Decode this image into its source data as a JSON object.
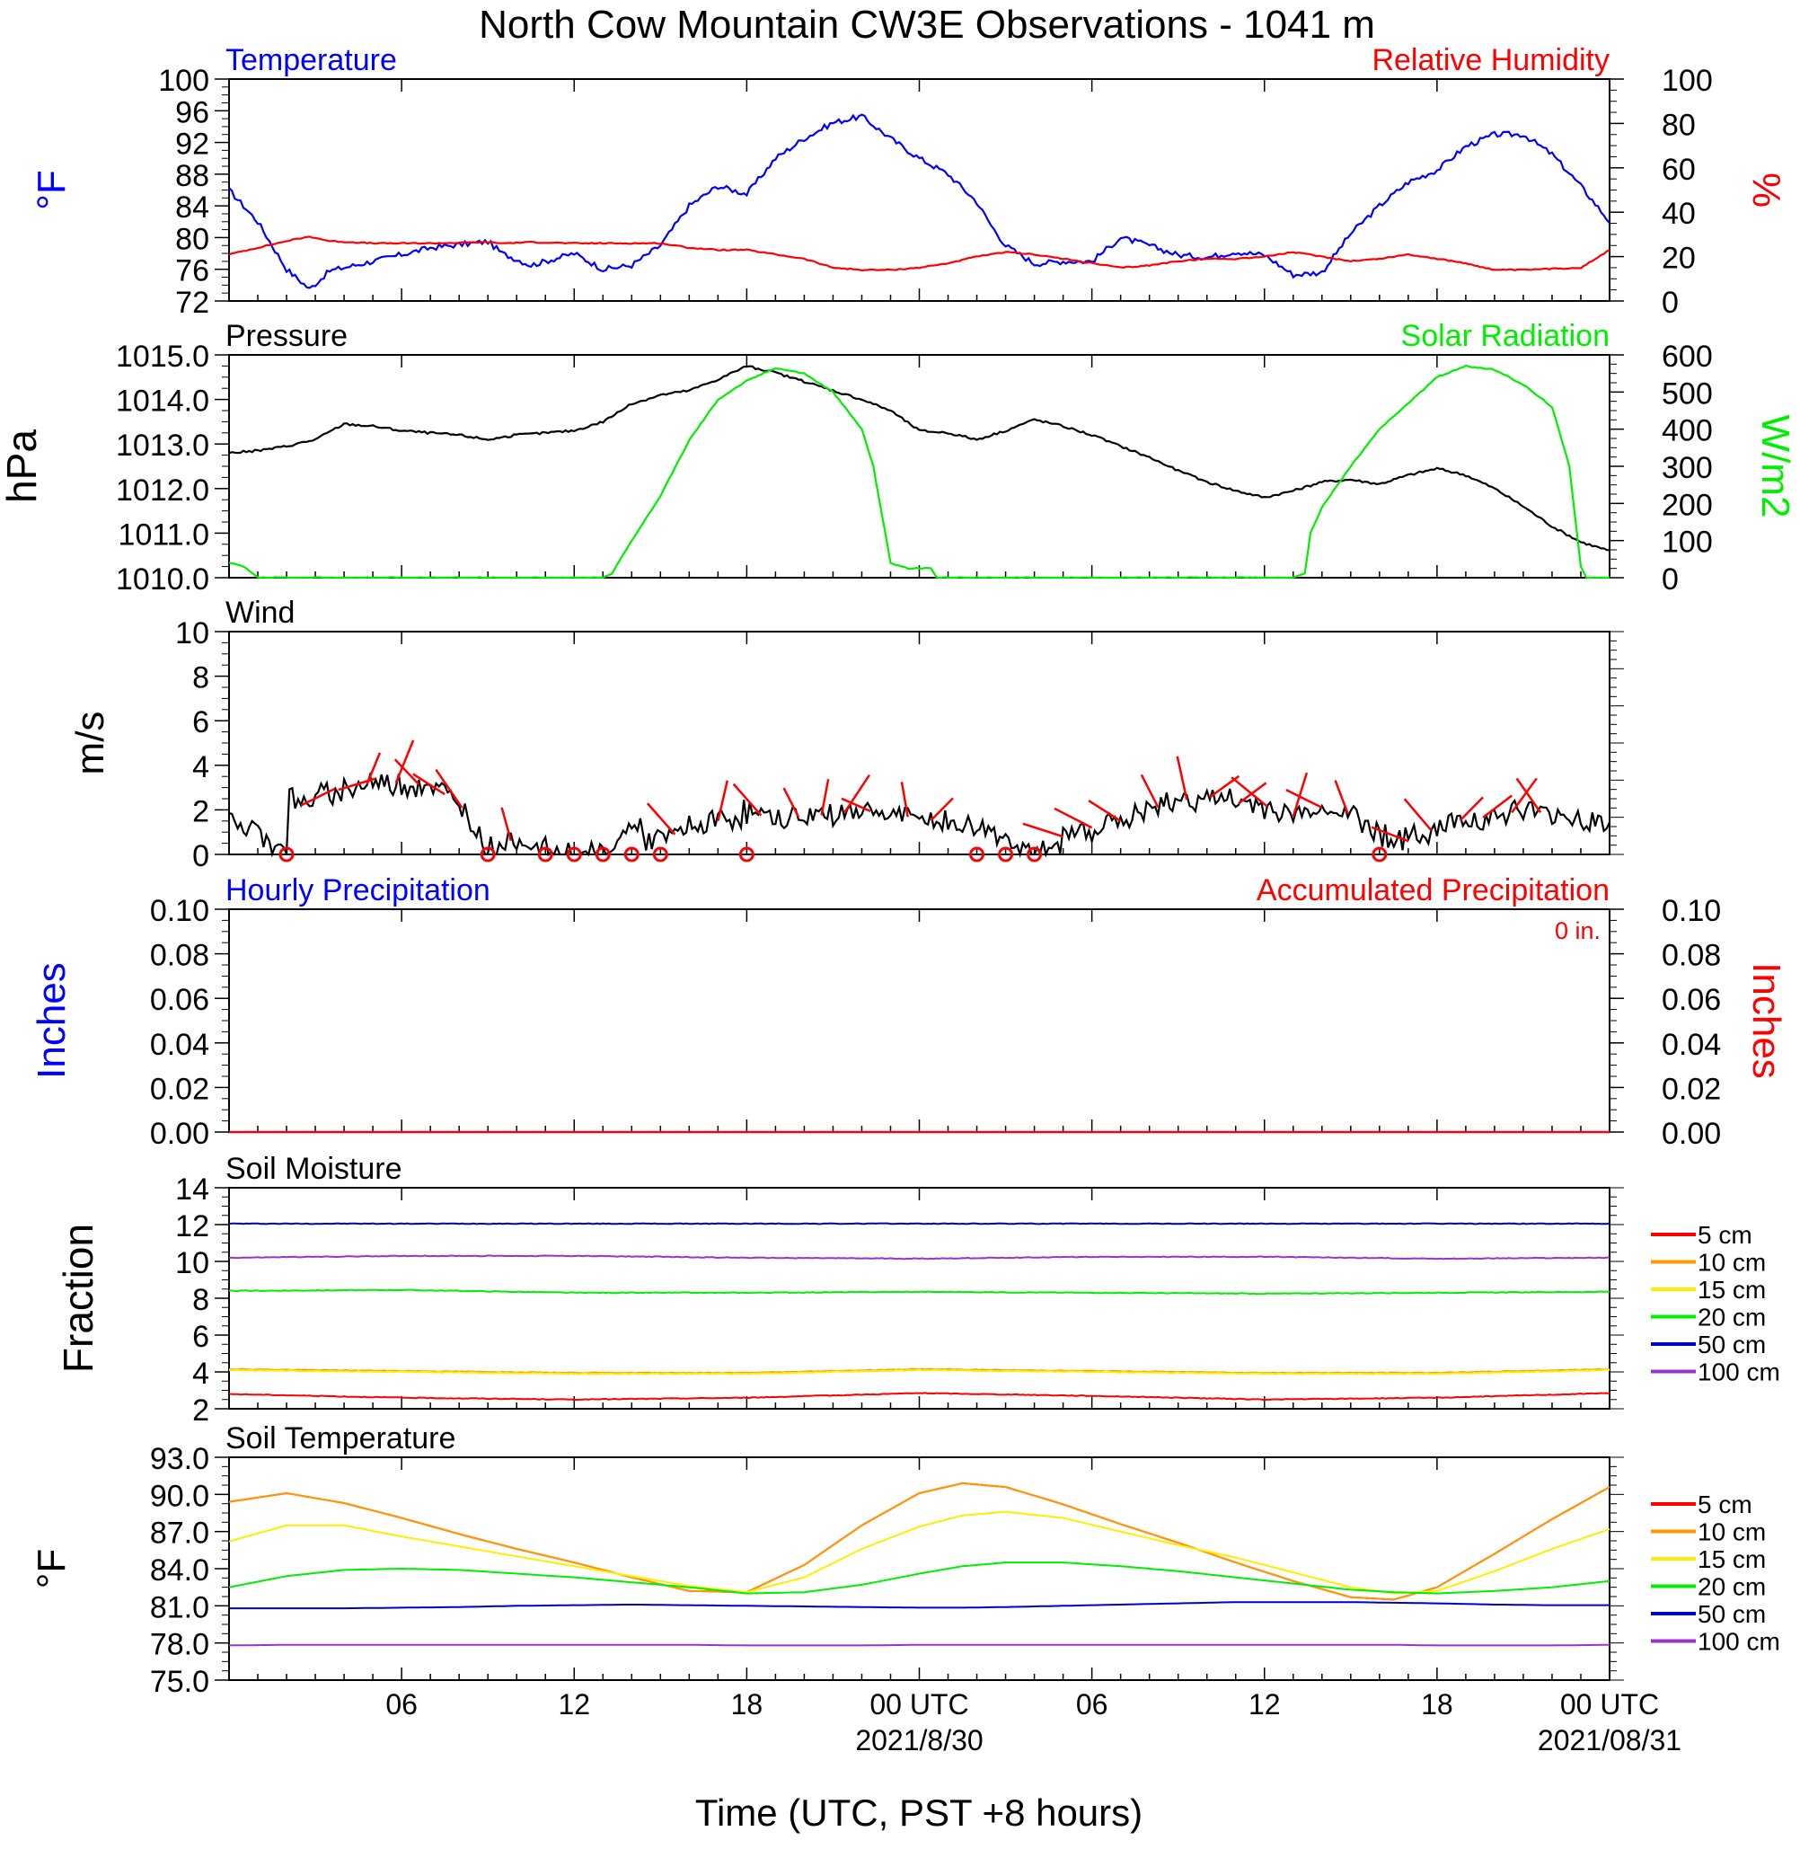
{
  "page": {
    "title": "North Cow Mountain CW3E Observations - 1041 m",
    "xaxis": {
      "label": "Time (UTC, PST +8 hours)",
      "ticks": [
        "06",
        "12",
        "18",
        "00 UTC",
        "06",
        "12",
        "18",
        "00 UTC"
      ],
      "dates": [
        "2021/8/30",
        "2021/08/31"
      ]
    }
  },
  "chart_data": [
    {
      "id": "temp_rh",
      "type": "line",
      "title_left": "Temperature",
      "title_right": "Relative Humidity",
      "ylabel_left": "°F",
      "ylabel_right": "%",
      "ylim_left": [
        72,
        100
      ],
      "ylim_right": [
        0,
        100
      ],
      "yticks_left": [
        "100",
        "96",
        "92",
        "88",
        "84",
        "80",
        "76",
        "72"
      ],
      "yticks_right": [
        "100",
        "80",
        "60",
        "40",
        "20",
        "0"
      ],
      "x_hours": [
        0,
        1,
        2,
        2.8,
        3.5,
        5,
        7,
        9,
        9.5,
        10.5,
        12,
        13,
        14,
        15,
        16,
        17,
        18,
        19,
        20,
        21,
        22,
        23,
        24,
        25,
        26,
        26.5,
        27,
        28,
        29,
        30,
        31,
        32,
        33,
        34,
        35,
        36,
        37,
        38,
        39,
        40,
        41,
        42,
        43,
        44,
        45,
        46,
        47,
        48
      ],
      "series": [
        {
          "name": "Temperature",
          "axis": "left",
          "color": "#0000ff",
          "values": [
            86,
            82,
            76,
            73.5,
            75.8,
            77,
            78.7,
            79.5,
            78,
            76.5,
            78,
            76,
            76.5,
            79,
            84,
            86.5,
            85.5,
            90,
            92.5,
            94.5,
            95.3,
            92.5,
            90,
            88,
            84.5,
            81.5,
            79,
            76.7,
            77,
            77,
            80,
            79,
            77.8,
            77.5,
            78.2,
            77.8,
            75.3,
            75.6,
            80.5,
            84,
            87,
            88.5,
            91.5,
            93,
            93,
            90.5,
            86.5,
            82
          ]
        },
        {
          "name": "Relative Humidity",
          "axis": "right",
          "color": "#ff0000",
          "values": [
            21,
            24,
            27,
            29,
            27,
            26,
            26,
            26.5,
            26,
            26.5,
            26,
            26,
            26,
            26,
            24,
            23,
            23,
            21,
            19,
            15,
            14,
            14,
            15,
            17,
            20,
            21,
            22,
            21,
            19,
            17,
            15,
            16,
            18,
            19,
            19,
            20,
            22,
            20,
            18,
            19,
            21,
            19,
            17,
            14,
            14,
            14.5,
            15,
            23
          ]
        }
      ]
    },
    {
      "id": "pressure_solar",
      "type": "line",
      "title_left": "Pressure",
      "title_right": "Solar Radiation",
      "ylabel_left": "hPa",
      "ylabel_right": "W/m2",
      "ylim_left": [
        1010,
        1015
      ],
      "ylim_right": [
        0,
        600
      ],
      "yticks_left": [
        "1015.0",
        "1014.0",
        "1013.0",
        "1012.0",
        "1011.0",
        "1010.0"
      ],
      "yticks_right": [
        "600",
        "500",
        "400",
        "300",
        "200",
        "100",
        "0"
      ],
      "series": [
        {
          "name": "Pressure",
          "axis": "left",
          "color": "#000000",
          "x_hours": [
            0,
            1,
            2,
            3,
            4,
            5,
            6,
            7,
            8,
            9,
            10,
            11,
            12,
            13,
            14,
            15,
            16,
            17,
            18,
            19,
            20,
            21,
            22,
            23,
            24,
            25,
            26,
            27,
            28,
            29,
            30,
            31,
            32,
            33,
            34,
            35,
            36,
            37,
            38,
            39,
            40,
            41,
            42,
            43,
            44,
            45,
            46,
            47,
            48
          ],
          "values": [
            1012.8,
            1012.85,
            1012.95,
            1013.1,
            1013.45,
            1013.4,
            1013.3,
            1013.25,
            1013.2,
            1013.1,
            1013.2,
            1013.25,
            1013.3,
            1013.5,
            1013.9,
            1014.1,
            1014.2,
            1014.45,
            1014.75,
            1014.6,
            1014.4,
            1014.2,
            1014,
            1013.75,
            1013.3,
            1013.25,
            1013.1,
            1013.3,
            1013.55,
            1013.4,
            1013.2,
            1012.95,
            1012.7,
            1012.4,
            1012.15,
            1011.95,
            1011.8,
            1011.95,
            1012.15,
            1012.2,
            1012.1,
            1012.3,
            1012.45,
            1012.3,
            1012,
            1011.6,
            1011.15,
            1010.8,
            1010.6
          ]
        },
        {
          "name": "Solar Radiation",
          "axis": "right",
          "color": "#00ee00",
          "x_hours": [
            0,
            0.5,
            1,
            13,
            13.3,
            14,
            15,
            16,
            17,
            18,
            19,
            20,
            21,
            22,
            22.4,
            23,
            23.6,
            24.4,
            24.6,
            26,
            30,
            37,
            37.4,
            37.6,
            38,
            39,
            40,
            41,
            42,
            43,
            44,
            45,
            46,
            46.6,
            47,
            47.2,
            48
          ],
          "values": [
            40,
            30,
            0,
            0,
            10,
            100,
            220,
            370,
            480,
            530,
            565,
            550,
            500,
            400,
            300,
            40,
            25,
            25,
            0,
            0,
            0,
            0,
            10,
            120,
            190,
            300,
            400,
            470,
            540,
            570,
            560,
            520,
            460,
            300,
            30,
            0,
            0
          ]
        }
      ]
    },
    {
      "id": "wind",
      "type": "line",
      "title_left": "Wind",
      "ylabel_left": "m/s",
      "ylim_left": [
        0,
        10
      ],
      "yticks_left": [
        "10",
        "8",
        "6",
        "4",
        "2",
        "0"
      ],
      "series": [
        {
          "name": "Wind",
          "color": "#000000",
          "x_hours": [
            0,
            1,
            1.5,
            2,
            2.1,
            2.5,
            3,
            4,
            5,
            6,
            7,
            8,
            9,
            9.5,
            10,
            11,
            12,
            13,
            13.5,
            14,
            14.5,
            15,
            16,
            17,
            18,
            19,
            20,
            21,
            22,
            23,
            24,
            25,
            26,
            27,
            28,
            28.5,
            29,
            30,
            31,
            32,
            33,
            34,
            35,
            36,
            37,
            38,
            39,
            40,
            41,
            42,
            43,
            44,
            45,
            46,
            47,
            48
          ],
          "values": [
            1.4,
            1.1,
            0.5,
            0.5,
            2.6,
            2.2,
            2.5,
            3,
            3.2,
            3.2,
            3.1,
            2.3,
            0.3,
            0.5,
            0.7,
            0.2,
            0,
            0,
            0.5,
            1.5,
            0.7,
            0.6,
            1.2,
            1.5,
            1.9,
            1.6,
            1.7,
            1.8,
            2,
            1.8,
            1.6,
            1.4,
            1.2,
            0.8,
            0,
            0,
            0.8,
            1.2,
            1.5,
            2,
            2.4,
            2.6,
            2.3,
            2.2,
            1.7,
            2.1,
            1.8,
            1,
            0.6,
            1.2,
            1.6,
            1.7,
            2,
            1.8,
            1.6,
            1.4
          ]
        }
      ],
      "barbs": {
        "color": "#ff0000",
        "calm_hours": [
          2,
          9,
          11,
          12,
          13,
          14,
          15,
          18,
          26,
          27,
          28,
          40
        ],
        "barb_hours": [
          2.5,
          3.8,
          4.8,
          5.8,
          6.6,
          7.5,
          8.1,
          9.8,
          15.5,
          17,
          18.5,
          19.8,
          20.6,
          21.4,
          22.3,
          23.6,
          24.4,
          29,
          30,
          31,
          32.3,
          33.3,
          34.1,
          35.1,
          36.1,
          37,
          38,
          38.9,
          41,
          41.8,
          42.8,
          43.6,
          44.6,
          45.6
        ]
      }
    },
    {
      "id": "precip",
      "type": "line",
      "title_left": "Hourly Precipitation",
      "title_right": "Accumulated Precipitation",
      "annotation": "0 in.",
      "ylabel_left": "Inches",
      "ylabel_right": "Inches",
      "ylim_left": [
        0,
        0.1
      ],
      "ylim_right": [
        0,
        0.1
      ],
      "yticks_left": [
        "0.10",
        "0.08",
        "0.06",
        "0.04",
        "0.02",
        "0.00"
      ],
      "yticks_right": [
        "0.10",
        "0.08",
        "0.06",
        "0.04",
        "0.02",
        "0.00"
      ],
      "series": [
        {
          "name": "Hourly Precipitation",
          "axis": "left",
          "color": "#0000ff",
          "x_hours": [
            0,
            48
          ],
          "values": [
            0,
            0
          ]
        },
        {
          "name": "Accumulated Precipitation",
          "axis": "right",
          "color": "#ff0000",
          "x_hours": [
            0,
            48
          ],
          "values": [
            0,
            0
          ]
        }
      ]
    },
    {
      "id": "soil_moisture",
      "type": "line",
      "title_left": "Soil Moisture",
      "ylabel_left": "Fraction",
      "ylim_left": [
        2,
        14
      ],
      "yticks_left": [
        "14",
        "12",
        "10",
        "8",
        "6",
        "4",
        "2"
      ],
      "x_hours": [
        0,
        6,
        12,
        18,
        24,
        30,
        36,
        42,
        48
      ],
      "series": [
        {
          "name": "5 cm",
          "color": "#ff0000",
          "values": [
            2.8,
            2.6,
            2.5,
            2.6,
            2.85,
            2.7,
            2.5,
            2.6,
            2.85
          ]
        },
        {
          "name": "10 cm",
          "color": "#ff9900",
          "values": [
            4.15,
            4.05,
            3.95,
            3.95,
            4.15,
            4.05,
            3.95,
            3.95,
            4.15
          ]
        },
        {
          "name": "15 cm",
          "color": "#ffee00",
          "values": [
            4.1,
            4.0,
            3.9,
            3.9,
            4.1,
            4.0,
            3.9,
            3.9,
            4.1
          ]
        },
        {
          "name": "20 cm",
          "color": "#00ee00",
          "values": [
            8.4,
            8.45,
            8.3,
            8.3,
            8.35,
            8.3,
            8.25,
            8.3,
            8.35
          ]
        },
        {
          "name": "50 cm",
          "color": "#0000cc",
          "values": [
            12.05,
            12.05,
            12.05,
            12.05,
            12.05,
            12.05,
            12.05,
            12.05,
            12.05
          ]
        },
        {
          "name": "100 cm",
          "color": "#9933cc",
          "values": [
            10.2,
            10.3,
            10.3,
            10.2,
            10.15,
            10.25,
            10.25,
            10.15,
            10.2
          ]
        }
      ]
    },
    {
      "id": "soil_temp",
      "type": "line",
      "title_left": "Soil Temperature",
      "ylabel_left": "°F",
      "ylim_left": [
        75,
        93
      ],
      "yticks_left": [
        "93.0",
        "90.0",
        "87.0",
        "84.0",
        "81.0",
        "78.0",
        "75.0"
      ],
      "x_hours": [
        0,
        2,
        4,
        6,
        8,
        10,
        12,
        14,
        16,
        18,
        20,
        22,
        24,
        25.5,
        27,
        29,
        31,
        33,
        35,
        37,
        39,
        40.5,
        42,
        44,
        46,
        48
      ],
      "series": [
        {
          "name": "5 cm",
          "color": "#ff0000",
          "values": [
            89.4,
            90.1,
            89.3,
            88.1,
            86.8,
            85.6,
            84.5,
            83.3,
            82.2,
            82.1,
            84.3,
            87.5,
            90.1,
            90.9,
            90.6,
            89.2,
            87.6,
            86.1,
            84.5,
            83,
            81.7,
            81.5,
            82.5,
            85.2,
            88,
            90.6
          ]
        },
        {
          "name": "10 cm",
          "color": "#ff9900",
          "values": [
            89.4,
            90.1,
            89.3,
            88.1,
            86.8,
            85.6,
            84.5,
            83.3,
            82.2,
            82.1,
            84.3,
            87.5,
            90.1,
            90.9,
            90.6,
            89.2,
            87.6,
            86.1,
            84.5,
            83,
            81.7,
            81.5,
            82.5,
            85.2,
            88,
            90.6
          ]
        },
        {
          "name": "15 cm",
          "color": "#ffee00",
          "values": [
            86.2,
            87.5,
            87.5,
            86.6,
            85.8,
            85,
            84.2,
            83.4,
            82.6,
            82.1,
            83.3,
            85.6,
            87.4,
            88.3,
            88.6,
            88.1,
            87,
            85.9,
            84.9,
            83.7,
            82.5,
            82,
            82.2,
            83.8,
            85.6,
            87.2
          ]
        },
        {
          "name": "20 cm",
          "color": "#00ee00",
          "values": [
            82.5,
            83.4,
            83.9,
            84.0,
            83.9,
            83.6,
            83.3,
            82.9,
            82.5,
            82.0,
            82.1,
            82.7,
            83.6,
            84.2,
            84.5,
            84.5,
            84.2,
            83.8,
            83.3,
            82.8,
            82.3,
            82.1,
            82.0,
            82.2,
            82.5,
            83.0
          ]
        },
        {
          "name": "50 cm",
          "color": "#0000cc",
          "values": [
            80.8,
            80.8,
            80.8,
            80.85,
            80.9,
            81.0,
            81.05,
            81.1,
            81.05,
            81.0,
            80.95,
            80.9,
            80.85,
            80.85,
            80.9,
            81.0,
            81.1,
            81.2,
            81.3,
            81.3,
            81.3,
            81.25,
            81.2,
            81.1,
            81.05,
            81.05
          ]
        },
        {
          "name": "100 cm",
          "color": "#9933cc",
          "values": [
            77.8,
            77.85,
            77.85,
            77.85,
            77.85,
            77.85,
            77.85,
            77.85,
            77.85,
            77.8,
            77.8,
            77.8,
            77.85,
            77.85,
            77.85,
            77.85,
            77.85,
            77.85,
            77.85,
            77.85,
            77.85,
            77.85,
            77.8,
            77.8,
            77.8,
            77.85
          ]
        }
      ],
      "legend": [
        "5 cm",
        "10 cm",
        "15 cm",
        "20 cm",
        "50 cm",
        "100 cm"
      ]
    }
  ]
}
